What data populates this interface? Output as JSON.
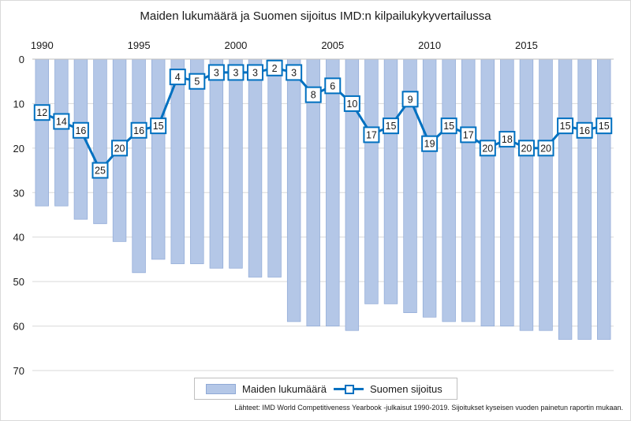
{
  "chart_data": {
    "type": "bar+line",
    "title": "Maiden lukumäärä ja Suomen sijoitus IMD:n kilpailukykyvertailussa",
    "x": [
      1990,
      1991,
      1992,
      1993,
      1994,
      1995,
      1996,
      1997,
      1998,
      1999,
      2000,
      2001,
      2002,
      2003,
      2004,
      2005,
      2006,
      2007,
      2008,
      2009,
      2010,
      2011,
      2012,
      2013,
      2014,
      2015,
      2016,
      2017,
      2018,
      2019
    ],
    "x_tick_labels": [
      "1990",
      "1995",
      "2000",
      "2005",
      "2010",
      "2015"
    ],
    "y_tick_labels": [
      "0",
      "10",
      "20",
      "30",
      "40",
      "50",
      "60",
      "70"
    ],
    "ylim": [
      0,
      70
    ],
    "y_inverted": true,
    "series": [
      {
        "name": "Maiden lukumäärä",
        "type": "bar",
        "color": "#b4c7e7",
        "values": [
          33,
          33,
          36,
          37,
          41,
          48,
          45,
          46,
          46,
          47,
          47,
          49,
          49,
          59,
          60,
          60,
          61,
          55,
          55,
          57,
          58,
          59,
          59,
          60,
          60,
          61,
          61,
          63,
          63,
          63
        ]
      },
      {
        "name": "Suomen sijoitus",
        "type": "line",
        "color": "#0070c0",
        "values": [
          12,
          14,
          16,
          25,
          20,
          16,
          15,
          4,
          5,
          3,
          3,
          3,
          2,
          3,
          8,
          6,
          10,
          17,
          15,
          9,
          19,
          15,
          17,
          20,
          18,
          20,
          20,
          15,
          16,
          15
        ]
      }
    ],
    "legend_position": "bottom",
    "grid": "horizontal",
    "source_note": "Lähteet: IMD World Competitiveness Yearbook -julkaisut 1990-2019. Sijoitukset kyseisen vuoden painetun raportin mukaan."
  }
}
